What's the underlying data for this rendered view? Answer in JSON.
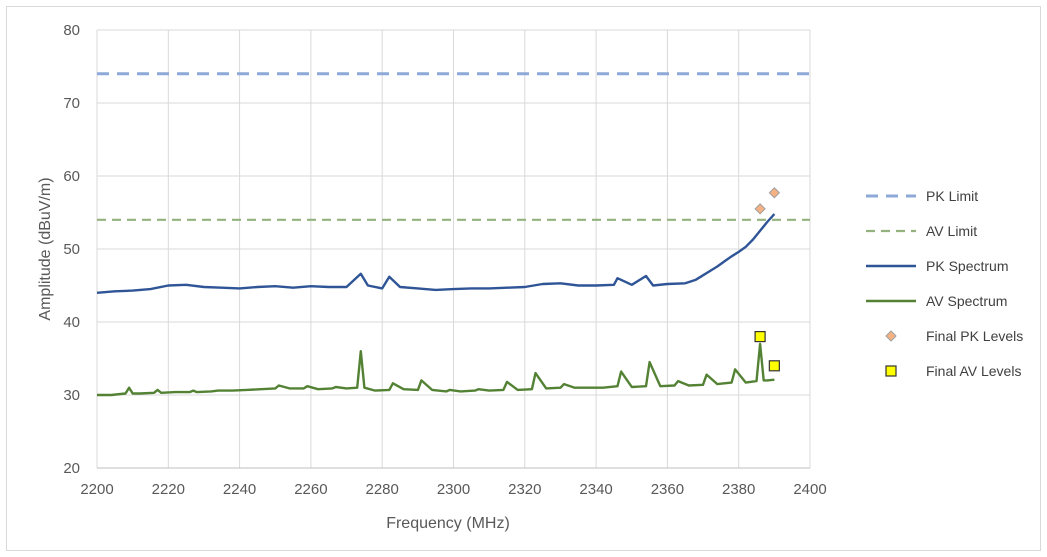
{
  "chart_data": {
    "type": "line",
    "title": "",
    "xlabel": "Frequency (MHz)",
    "ylabel": "Amplitude (dBuV/m)",
    "xlim": [
      2200,
      2400
    ],
    "ylim": [
      20,
      80
    ],
    "x_ticks": [
      "2200",
      "2220",
      "2240",
      "2260",
      "2280",
      "2300",
      "2320",
      "2340",
      "2360",
      "2380",
      "2400"
    ],
    "y_ticks": [
      "20",
      "30",
      "40",
      "50",
      "60",
      "70",
      "80"
    ],
    "grid": true,
    "legend_position": "right",
    "series": [
      {
        "name": "PK Limit",
        "style": "dashed",
        "color": "#8ea9d8",
        "x": [
          2200,
          2400
        ],
        "y": [
          74,
          74
        ]
      },
      {
        "name": "AV Limit",
        "style": "dashed",
        "color": "#93b27e",
        "x": [
          2200,
          2400
        ],
        "y": [
          54,
          54
        ]
      },
      {
        "name": "PK Spectrum",
        "style": "line",
        "color": "#2f5597",
        "x": [
          2200,
          2205,
          2210,
          2215,
          2220,
          2225,
          2230,
          2235,
          2240,
          2245,
          2250,
          2255,
          2260,
          2265,
          2270,
          2274,
          2276,
          2280,
          2282,
          2285,
          2290,
          2295,
          2300,
          2305,
          2310,
          2315,
          2320,
          2325,
          2330,
          2335,
          2340,
          2345,
          2346,
          2350,
          2354,
          2356,
          2360,
          2365,
          2368,
          2370,
          2372,
          2374,
          2376,
          2378,
          2380,
          2382,
          2384,
          2386,
          2388,
          2390
        ],
        "y": [
          44.0,
          44.2,
          44.3,
          44.5,
          45.0,
          45.1,
          44.8,
          44.7,
          44.6,
          44.8,
          44.9,
          44.7,
          44.9,
          44.8,
          44.8,
          46.6,
          45.0,
          44.6,
          46.2,
          44.8,
          44.6,
          44.4,
          44.5,
          44.6,
          44.6,
          44.7,
          44.8,
          45.2,
          45.3,
          45.0,
          45.0,
          45.1,
          46.0,
          45.1,
          46.3,
          45.0,
          45.2,
          45.3,
          45.8,
          46.4,
          47.0,
          47.6,
          48.3,
          49.0,
          49.6,
          50.3,
          51.3,
          52.5,
          53.7,
          54.8
        ]
      },
      {
        "name": "AV Spectrum",
        "style": "line",
        "color": "#548235",
        "x": [
          2200,
          2204,
          2208,
          2209,
          2210,
          2212,
          2216,
          2217,
          2218,
          2222,
          2226,
          2227,
          2228,
          2232,
          2234,
          2238,
          2242,
          2246,
          2250,
          2251,
          2254,
          2258,
          2259,
          2262,
          2266,
          2267,
          2270,
          2273,
          2274,
          2275,
          2278,
          2282,
          2283,
          2286,
          2290,
          2291,
          2294,
          2298,
          2299,
          2302,
          2306,
          2307,
          2310,
          2314,
          2315,
          2318,
          2322,
          2323,
          2326,
          2330,
          2331,
          2334,
          2338,
          2342,
          2346,
          2347,
          2350,
          2354,
          2355,
          2358,
          2362,
          2363,
          2366,
          2370,
          2371,
          2374,
          2378,
          2379,
          2382,
          2385,
          2386,
          2387,
          2388,
          2390
        ],
        "y": [
          30.0,
          30.0,
          30.2,
          31.0,
          30.2,
          30.2,
          30.3,
          30.7,
          30.3,
          30.4,
          30.4,
          30.6,
          30.4,
          30.5,
          30.6,
          30.6,
          30.7,
          30.8,
          30.9,
          31.3,
          30.9,
          30.9,
          31.2,
          30.8,
          30.9,
          31.1,
          30.9,
          31.0,
          36.0,
          31.0,
          30.6,
          30.7,
          31.6,
          30.8,
          30.7,
          32.0,
          30.7,
          30.5,
          30.7,
          30.5,
          30.6,
          30.8,
          30.6,
          30.7,
          31.8,
          30.7,
          30.8,
          33.0,
          30.9,
          31.0,
          31.5,
          31.0,
          31.0,
          31.0,
          31.2,
          33.2,
          31.1,
          31.2,
          34.5,
          31.2,
          31.3,
          31.9,
          31.3,
          31.4,
          32.8,
          31.5,
          31.7,
          33.5,
          31.7,
          31.9,
          37.0,
          32.0,
          32.0,
          32.1
        ]
      },
      {
        "name": "Final PK Levels",
        "style": "marker-diamond",
        "color": "#f4b183",
        "x": [
          2386,
          2390
        ],
        "y": [
          55.5,
          57.7
        ]
      },
      {
        "name": "Final AV Levels",
        "style": "marker-square",
        "color": "#ffff00",
        "x": [
          2386,
          2390
        ],
        "y": [
          38.0,
          34.0
        ]
      }
    ]
  }
}
